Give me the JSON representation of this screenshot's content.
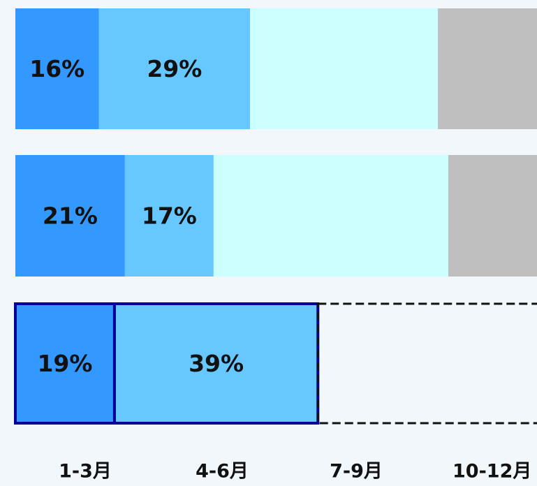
{
  "chart_data": {
    "type": "stacked-hbar",
    "categories": [
      null,
      null,
      null
    ],
    "xlim": [
      0,
      100
    ],
    "highlight": 2,
    "series": [
      {
        "name": "1-3月",
        "color": "#3399ff",
        "values": [
          16,
          21,
          19
        ],
        "value_labels": [
          "16%",
          "21%",
          "19%"
        ]
      },
      {
        "name": "4-6月",
        "color": "#66c8ff",
        "values": [
          29,
          17,
          39
        ],
        "value_labels": [
          "29%",
          "17%",
          "39%"
        ]
      },
      {
        "name": "7-9月",
        "color": "#ccffff",
        "values": [
          36,
          45,
          null
        ]
      },
      {
        "name": "10-12月",
        "color": "#bfbfbf",
        "values": [
          19,
          17,
          null
        ]
      }
    ]
  }
}
